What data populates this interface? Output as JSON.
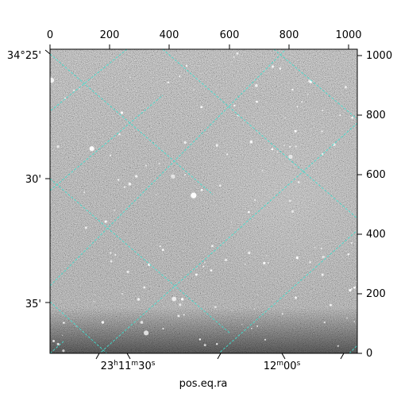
{
  "image": {
    "description_type": "astronomical-greyscale-image",
    "overlay_grid_color": "#40e0d0",
    "background_color": "#ffffff",
    "frame_color": "#000000"
  },
  "axes": {
    "top_ticks": [
      "0",
      "200",
      "400",
      "600",
      "800",
      "1000"
    ],
    "right_ticks": [
      "0",
      "200",
      "400",
      "600",
      "800",
      "1000"
    ],
    "left_ticks": [
      "34°25'",
      "30'",
      "35'"
    ],
    "bottom_ticks": [
      {
        "hms_hour": "23",
        "h": "h",
        "min": "11",
        "m": "m",
        "sec": "30",
        "s": "s"
      },
      {
        "hms_hour": "",
        "h": "",
        "min": "12",
        "m": "m",
        "sec": "00",
        "s": "s"
      }
    ],
    "bottom_label": "pos.eq.ra"
  }
}
